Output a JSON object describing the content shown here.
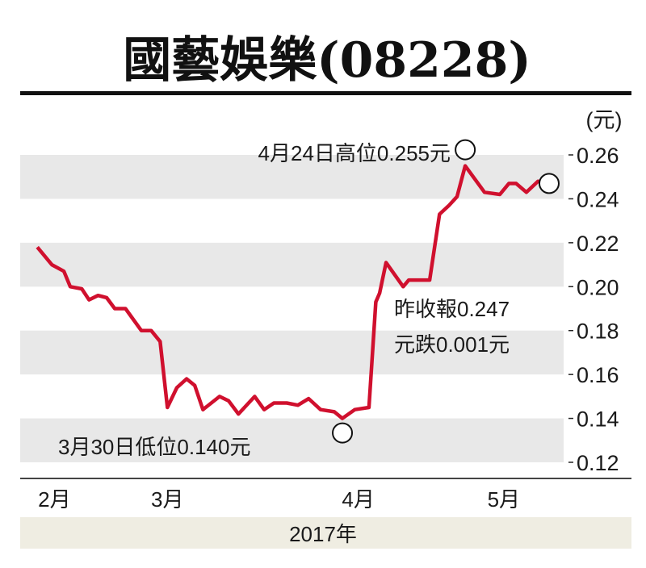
{
  "chart_data": {
    "type": "line",
    "title": "國藝娛樂(08228)",
    "ylabel": "(元)",
    "xlabel": "2017年",
    "ylim": [
      0.12,
      0.26
    ],
    "xlim": [
      -4,
      123
    ],
    "yticks": [
      "0.26",
      "0.24",
      "0.22",
      "0.20",
      "0.18",
      "0.16",
      "0.14",
      "0.12"
    ],
    "ytick_values": [
      0.26,
      0.24,
      0.22,
      0.2,
      0.18,
      0.16,
      0.14,
      0.12
    ],
    "xticks": [
      {
        "label": "2月",
        "x": 4
      },
      {
        "label": "3月",
        "x": 30.4
      },
      {
        "label": "4月",
        "x": 75
      },
      {
        "label": "5月",
        "x": 109
      }
    ],
    "grid": "alternating horizontal bands",
    "line_color": "#d0102e",
    "band_color": "#e8e8e8",
    "year_band_color": "#efede2",
    "series": [
      {
        "name": "國藝娛樂",
        "x": [
          0,
          3.4,
          6.2,
          7.7,
          10.4,
          12.1,
          14.2,
          16.2,
          18.1,
          20.6,
          24.3,
          26.6,
          28.7,
          30.4,
          32.6,
          34.9,
          36.8,
          38.7,
          42.6,
          44.7,
          47.0,
          50.8,
          53.0,
          55.3,
          58.3,
          60.9,
          63.4,
          66.2,
          69.4,
          71.3,
          74.2,
          77.5,
          79.1,
          80.0,
          81.5,
          85.5,
          86.8,
          91.7,
          94.0,
          96.2,
          98.1,
          100.0,
          104.5,
          108.1,
          110.2,
          111.9,
          114.3,
          117.0,
          119.6
        ],
        "values": [
          0.218,
          0.21,
          0.207,
          0.2,
          0.199,
          0.194,
          0.196,
          0.195,
          0.19,
          0.19,
          0.18,
          0.18,
          0.175,
          0.145,
          0.154,
          0.158,
          0.155,
          0.144,
          0.15,
          0.148,
          0.142,
          0.15,
          0.144,
          0.147,
          0.147,
          0.146,
          0.149,
          0.144,
          0.143,
          0.14,
          0.144,
          0.145,
          0.193,
          0.197,
          0.211,
          0.2,
          0.203,
          0.203,
          0.233,
          0.237,
          0.241,
          0.255,
          0.243,
          0.242,
          0.247,
          0.247,
          0.243,
          0.248,
          0.247
        ]
      }
    ],
    "annotations": [
      {
        "text": "4月24日高位0.255元",
        "x": 100.0,
        "y": 0.255,
        "marker": "circle-above"
      },
      {
        "text": "3月30日低位0.140元",
        "x": 71.3,
        "y": 0.14,
        "marker": "circle-below"
      },
      {
        "text_line1": "昨收報0.247",
        "text_line2": "元跌0.001元",
        "x": 119.6,
        "y": 0.247,
        "marker": "circle"
      }
    ]
  }
}
